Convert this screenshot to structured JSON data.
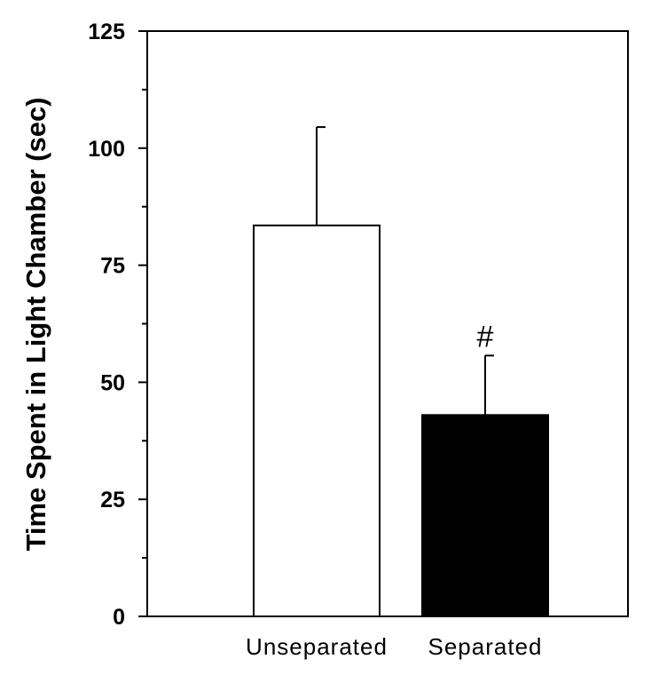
{
  "chart_data": {
    "type": "bar",
    "title": "",
    "xlabel": "",
    "ylabel": "Time Spent in Light Chamber (sec)",
    "ylim": [
      0,
      125
    ],
    "yticks": [
      0,
      25,
      50,
      75,
      100,
      125
    ],
    "yminor_step": 12.5,
    "categories": [
      "Unseparated",
      "Separated"
    ],
    "values": [
      83.5,
      43
    ],
    "errors": [
      21,
      12.7
    ],
    "bar_colors": [
      "#ffffff",
      "#000000"
    ],
    "annotations": [
      "",
      "#"
    ],
    "legend": "none",
    "grid": false
  }
}
